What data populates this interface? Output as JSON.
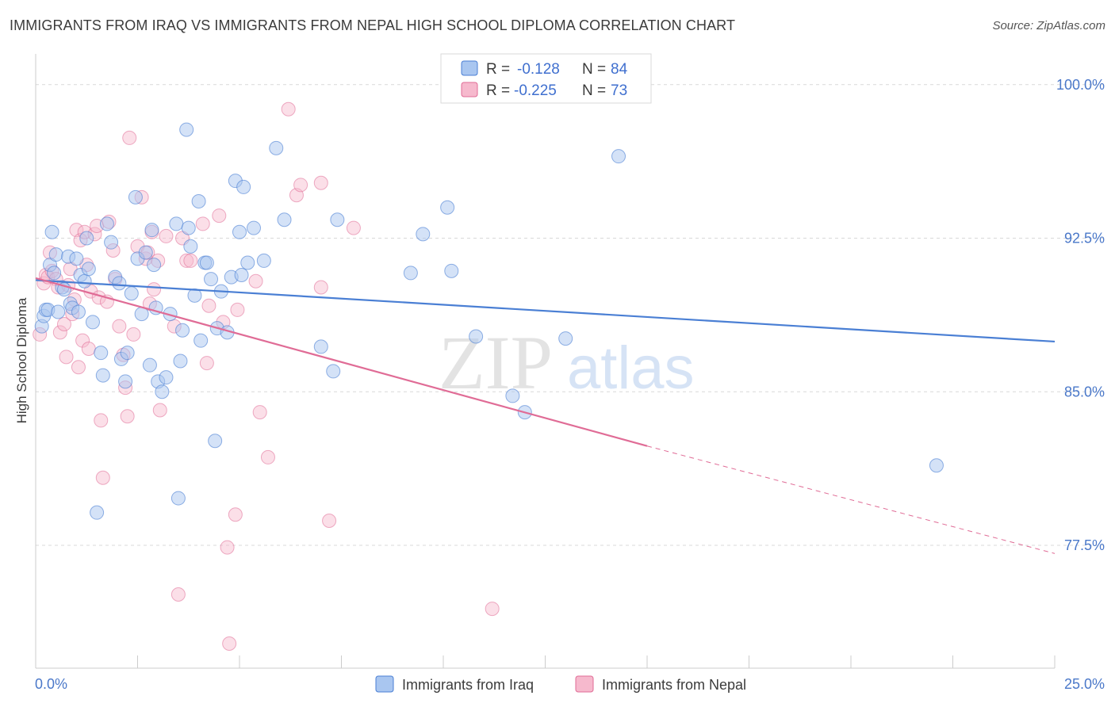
{
  "header": {
    "title": "IMMIGRANTS FROM IRAQ VS IMMIGRANTS FROM NEPAL HIGH SCHOOL DIPLOMA CORRELATION CHART",
    "source": "Source: ZipAtlas.com"
  },
  "colors": {
    "iraq": "#4a7fd4",
    "iraq_fill": "#a9c6f0",
    "nepal": "#e06c96",
    "nepal_fill": "#f6b9cd",
    "axis_label": "#4a78c9",
    "grid": "#d9d9d9"
  },
  "watermark": {
    "zip": "ZIP",
    "atlas": "atlas"
  },
  "chart_data": {
    "type": "scatter",
    "title": "IMMIGRANTS FROM IRAQ VS IMMIGRANTS FROM NEPAL HIGH SCHOOL DIPLOMA CORRELATION CHART",
    "xlabel": "",
    "ylabel": "High School Diploma",
    "xlim": [
      0,
      25
    ],
    "ylim": [
      71.5,
      101.5
    ],
    "x_tick_labels": [
      "0.0%",
      "25.0%"
    ],
    "y_ticks": [
      77.5,
      85.0,
      92.5,
      100.0
    ],
    "y_tick_labels": [
      "77.5%",
      "85.0%",
      "92.5%",
      "100.0%"
    ],
    "grid": true,
    "legend_position": "top-center",
    "stats": [
      {
        "r_label": "R =",
        "r_value": "-0.128",
        "n_label": "N =",
        "n_value": "84"
      },
      {
        "r_label": "R =",
        "r_value": "-0.225",
        "n_label": "N =",
        "n_value": "73"
      }
    ],
    "series": [
      {
        "name": "Immigrants from Iraq",
        "trend": {
          "x": [
            0,
            25
          ],
          "y": [
            90.45,
            87.45
          ]
        },
        "points": [
          [
            0.15,
            88.2
          ],
          [
            0.2,
            88.7
          ],
          [
            0.25,
            89.0
          ],
          [
            0.3,
            89.0
          ],
          [
            0.35,
            91.2
          ],
          [
            0.4,
            92.8
          ],
          [
            0.45,
            90.8
          ],
          [
            0.5,
            91.7
          ],
          [
            0.55,
            88.9
          ],
          [
            0.65,
            90.1
          ],
          [
            0.7,
            90.0
          ],
          [
            0.8,
            91.6
          ],
          [
            0.85,
            89.3
          ],
          [
            0.9,
            89.1
          ],
          [
            1.0,
            91.5
          ],
          [
            1.05,
            88.9
          ],
          [
            1.1,
            90.7
          ],
          [
            1.2,
            90.4
          ],
          [
            1.25,
            92.5
          ],
          [
            1.3,
            91.0
          ],
          [
            1.4,
            88.4
          ],
          [
            1.5,
            79.1
          ],
          [
            1.6,
            86.9
          ],
          [
            1.65,
            85.8
          ],
          [
            1.75,
            93.2
          ],
          [
            1.85,
            92.3
          ],
          [
            1.95,
            90.6
          ],
          [
            2.05,
            90.3
          ],
          [
            2.1,
            86.6
          ],
          [
            2.2,
            85.5
          ],
          [
            2.25,
            86.9
          ],
          [
            2.35,
            89.8
          ],
          [
            2.45,
            94.5
          ],
          [
            2.5,
            91.5
          ],
          [
            2.6,
            88.8
          ],
          [
            2.7,
            91.8
          ],
          [
            2.8,
            86.3
          ],
          [
            2.85,
            92.9
          ],
          [
            2.9,
            91.2
          ],
          [
            2.95,
            89.1
          ],
          [
            3.0,
            85.5
          ],
          [
            3.1,
            85.0
          ],
          [
            3.2,
            85.7
          ],
          [
            3.3,
            88.8
          ],
          [
            3.45,
            93.2
          ],
          [
            3.5,
            79.8
          ],
          [
            3.55,
            86.5
          ],
          [
            3.6,
            88.0
          ],
          [
            3.7,
            97.8
          ],
          [
            3.75,
            93.0
          ],
          [
            3.8,
            92.1
          ],
          [
            3.9,
            89.7
          ],
          [
            4.0,
            94.3
          ],
          [
            4.05,
            87.5
          ],
          [
            4.15,
            91.3
          ],
          [
            4.2,
            91.3
          ],
          [
            4.3,
            90.5
          ],
          [
            4.4,
            82.6
          ],
          [
            4.45,
            88.1
          ],
          [
            4.55,
            89.9
          ],
          [
            4.7,
            87.9
          ],
          [
            4.8,
            90.6
          ],
          [
            4.9,
            95.3
          ],
          [
            5.0,
            92.8
          ],
          [
            5.05,
            90.7
          ],
          [
            5.1,
            95.0
          ],
          [
            5.2,
            91.3
          ],
          [
            5.35,
            93.0
          ],
          [
            5.6,
            91.4
          ],
          [
            5.9,
            96.9
          ],
          [
            6.1,
            93.4
          ],
          [
            7.0,
            87.2
          ],
          [
            7.3,
            86.0
          ],
          [
            7.4,
            93.4
          ],
          [
            9.2,
            90.8
          ],
          [
            9.5,
            92.7
          ],
          [
            10.1,
            94.0
          ],
          [
            10.2,
            90.9
          ],
          [
            10.8,
            87.7
          ],
          [
            11.7,
            84.8
          ],
          [
            12.0,
            84.0
          ],
          [
            13.0,
            87.6
          ],
          [
            14.3,
            96.5
          ],
          [
            22.1,
            81.4
          ]
        ]
      },
      {
        "name": "Immigrants from Nepal",
        "trend": {
          "x": [
            0,
            15
          ],
          "y": [
            90.55,
            82.35
          ]
        },
        "trend_dashed": {
          "x": [
            15,
            25
          ],
          "y": [
            82.35,
            77.1
          ]
        },
        "points": [
          [
            0.1,
            87.8
          ],
          [
            0.2,
            90.3
          ],
          [
            0.25,
            90.7
          ],
          [
            0.3,
            90.6
          ],
          [
            0.35,
            91.8
          ],
          [
            0.4,
            90.9
          ],
          [
            0.5,
            90.5
          ],
          [
            0.55,
            90.1
          ],
          [
            0.6,
            87.9
          ],
          [
            0.7,
            88.3
          ],
          [
            0.75,
            86.7
          ],
          [
            0.8,
            90.2
          ],
          [
            0.85,
            91.0
          ],
          [
            0.9,
            88.8
          ],
          [
            0.95,
            89.5
          ],
          [
            1.0,
            92.9
          ],
          [
            1.05,
            86.2
          ],
          [
            1.1,
            92.4
          ],
          [
            1.15,
            87.5
          ],
          [
            1.2,
            92.8
          ],
          [
            1.25,
            91.2
          ],
          [
            1.3,
            87.1
          ],
          [
            1.35,
            89.9
          ],
          [
            1.45,
            92.7
          ],
          [
            1.5,
            93.1
          ],
          [
            1.55,
            89.6
          ],
          [
            1.6,
            83.6
          ],
          [
            1.65,
            80.8
          ],
          [
            1.75,
            89.4
          ],
          [
            1.8,
            93.3
          ],
          [
            1.9,
            91.9
          ],
          [
            1.95,
            90.5
          ],
          [
            2.05,
            88.2
          ],
          [
            2.15,
            86.8
          ],
          [
            2.2,
            85.2
          ],
          [
            2.25,
            83.8
          ],
          [
            2.3,
            97.4
          ],
          [
            2.4,
            87.8
          ],
          [
            2.5,
            92.1
          ],
          [
            2.6,
            94.5
          ],
          [
            2.7,
            91.5
          ],
          [
            2.75,
            91.8
          ],
          [
            2.8,
            89.3
          ],
          [
            2.85,
            92.8
          ],
          [
            2.9,
            90.0
          ],
          [
            3.0,
            91.4
          ],
          [
            3.05,
            84.1
          ],
          [
            3.2,
            92.6
          ],
          [
            3.4,
            88.2
          ],
          [
            3.5,
            75.1
          ],
          [
            3.6,
            92.5
          ],
          [
            3.7,
            91.4
          ],
          [
            3.8,
            91.4
          ],
          [
            4.1,
            93.2
          ],
          [
            4.2,
            86.4
          ],
          [
            4.25,
            89.2
          ],
          [
            4.5,
            93.6
          ],
          [
            4.6,
            88.4
          ],
          [
            4.7,
            77.4
          ],
          [
            4.75,
            72.7
          ],
          [
            4.9,
            79.0
          ],
          [
            4.95,
            89.0
          ],
          [
            5.4,
            90.4
          ],
          [
            5.5,
            84.0
          ],
          [
            5.7,
            81.8
          ],
          [
            6.2,
            98.8
          ],
          [
            6.4,
            94.6
          ],
          [
            6.5,
            95.1
          ],
          [
            7.0,
            95.2
          ],
          [
            7.0,
            90.1
          ],
          [
            7.2,
            78.7
          ],
          [
            7.8,
            93.0
          ],
          [
            11.2,
            74.4
          ]
        ]
      }
    ]
  },
  "legend": {
    "iraq_label": "Immigrants from Iraq",
    "nepal_label": "Immigrants from Nepal"
  }
}
